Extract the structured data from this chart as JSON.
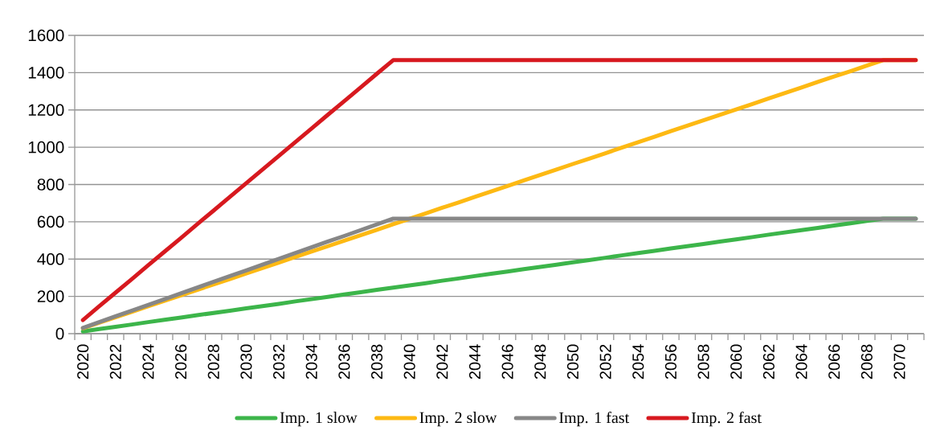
{
  "chart_data": {
    "type": "line",
    "categories": [
      "2020",
      null,
      "2022",
      null,
      "2024",
      null,
      "2026",
      null,
      "2028",
      null,
      "2030",
      null,
      "2032",
      null,
      "2034",
      null,
      "2036",
      null,
      "2038",
      null,
      "2040",
      null,
      "2042",
      null,
      "2044",
      null,
      "2046",
      null,
      "2048",
      null,
      "2050",
      null,
      "2052",
      null,
      "2054",
      null,
      "2056",
      null,
      "2058",
      null,
      "2060",
      null,
      "2062",
      null,
      "2064",
      null,
      "2066",
      null,
      "2068",
      null,
      "2070",
      null
    ],
    "series": [
      {
        "name": "Imp. 1 slow",
        "color": "#3cb54a",
        "values": [
          12,
          25,
          37,
          49,
          62,
          74,
          86,
          99,
          111,
          123,
          136,
          148,
          160,
          173,
          185,
          197,
          210,
          222,
          235,
          247,
          259,
          271,
          284,
          296,
          309,
          321,
          333,
          346,
          358,
          370,
          383,
          395,
          407,
          420,
          432,
          444,
          457,
          469,
          481,
          494,
          506,
          518,
          531,
          543,
          555,
          567,
          580,
          592,
          605,
          617,
          617,
          617
        ]
      },
      {
        "name": "Imp. 2 slow",
        "color": "#fdb913",
        "values": [
          29,
          59,
          88,
          117,
          147,
          176,
          205,
          235,
          264,
          293,
          323,
          352,
          381,
          411,
          440,
          469,
          499,
          528,
          557,
          587,
          616,
          645,
          675,
          704,
          734,
          763,
          792,
          822,
          851,
          880,
          910,
          939,
          968,
          998,
          1027,
          1056,
          1086,
          1115,
          1144,
          1174,
          1203,
          1232,
          1262,
          1291,
          1320,
          1350,
          1379,
          1408,
          1438,
          1467,
          1467,
          1467
        ]
      },
      {
        "name": "Imp. 1 fast",
        "color": "#878787",
        "values": [
          31,
          62,
          93,
          123,
          154,
          185,
          216,
          247,
          278,
          309,
          339,
          370,
          401,
          432,
          463,
          494,
          524,
          555,
          586,
          617,
          617,
          617,
          617,
          617,
          617,
          617,
          617,
          617,
          617,
          617,
          617,
          617,
          617,
          617,
          617,
          617,
          617,
          617,
          617,
          617,
          617,
          617,
          617,
          617,
          617,
          617,
          617,
          617,
          617,
          617,
          617,
          617
        ]
      },
      {
        "name": "Imp. 2 fast",
        "color": "#d7191f",
        "values": [
          73,
          147,
          220,
          293,
          367,
          440,
          513,
          587,
          660,
          734,
          807,
          880,
          954,
          1027,
          1100,
          1174,
          1247,
          1320,
          1394,
          1467,
          1467,
          1467,
          1467,
          1467,
          1467,
          1467,
          1467,
          1467,
          1467,
          1467,
          1467,
          1467,
          1467,
          1467,
          1467,
          1467,
          1467,
          1467,
          1467,
          1467,
          1467,
          1467,
          1467,
          1467,
          1467,
          1467,
          1467,
          1467,
          1467,
          1467,
          1467,
          1467
        ]
      }
    ],
    "ylim": [
      0,
      1600
    ],
    "yticks": [
      0,
      200,
      400,
      600,
      800,
      1000,
      1200,
      1400,
      1600
    ],
    "grid": "y",
    "legend": "bottom"
  }
}
